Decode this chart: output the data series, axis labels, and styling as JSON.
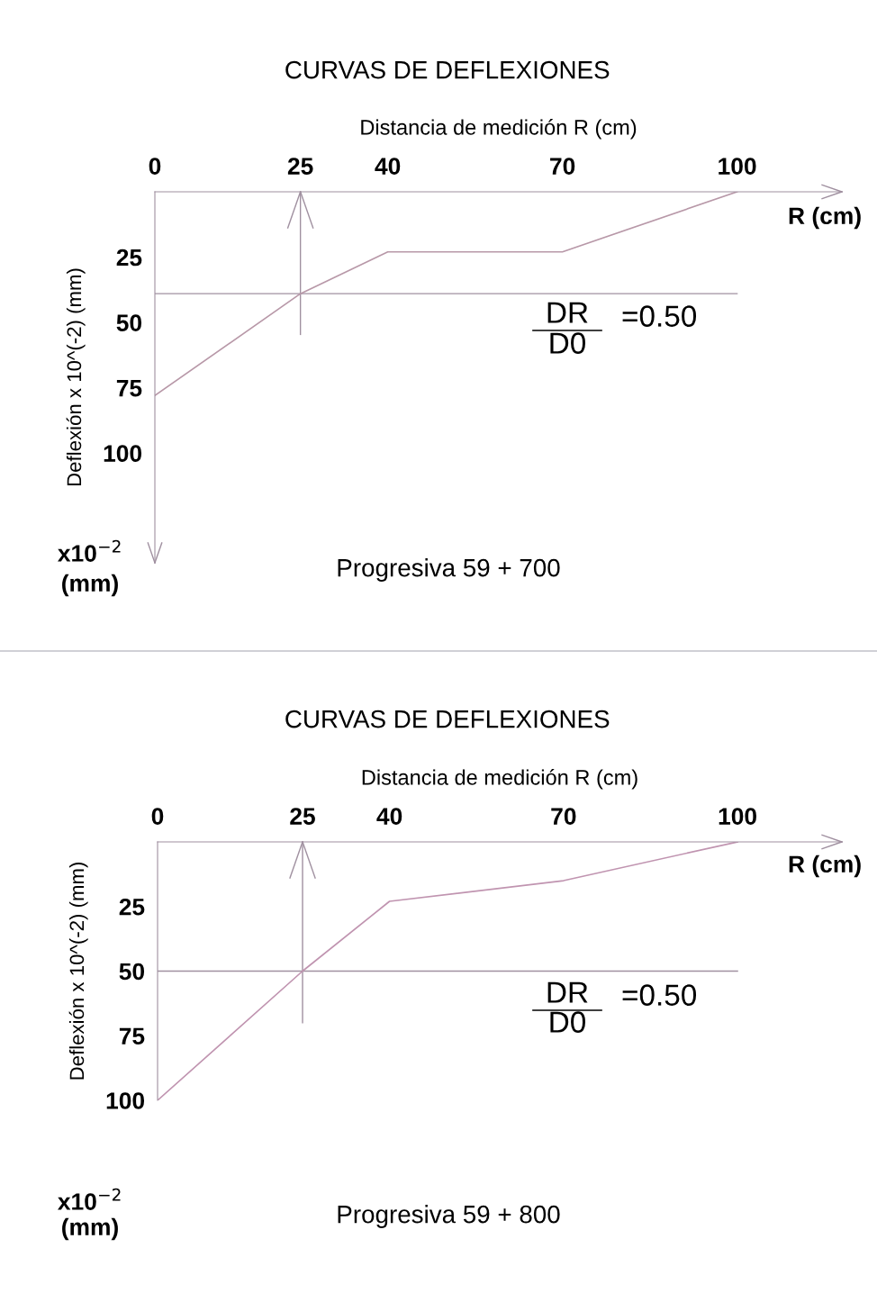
{
  "chart_data": [
    {
      "type": "line",
      "title": "CURVAS DE DEFLEXIONES",
      "xlabel": "Distancia de medición R (cm)",
      "ylabel": "Deflexión x 10^(-2) (mm)",
      "x": [
        0,
        25,
        40,
        70,
        100
      ],
      "series": [
        {
          "color": "#b898a8",
          "values": [
            78,
            39,
            23,
            23,
            0
          ]
        }
      ],
      "xlim": [
        0,
        118
      ],
      "xticks": [
        0,
        25,
        40,
        70,
        100
      ],
      "ylim": [
        142,
        0
      ],
      "yticks": [
        25,
        50,
        75,
        100
      ],
      "ref_lines": [
        {
          "axis": "y",
          "value": 39,
          "color": "#a090a0"
        },
        {
          "axis": "x",
          "value": 25,
          "color": "#a090a0"
        }
      ],
      "annotations": [
        "R (cm)",
        "DR",
        "D0",
        "=0.50",
        "x10$^{−2}$",
        "(mm)",
        "Progresiva 59 + 700"
      ],
      "grid": false,
      "legend": false
    },
    {
      "type": "line",
      "title": "CURVAS DE DEFLEXIONES",
      "xlabel": "Distancia de medición R (cm)",
      "ylabel": "Deflexión x 10^(-2) (mm)",
      "x": [
        0,
        25,
        40,
        70,
        100
      ],
      "series": [
        {
          "color": "#c094b0",
          "values": [
            100,
            50,
            23,
            15,
            0
          ]
        }
      ],
      "xlim": [
        0,
        118
      ],
      "xticks": [
        0,
        25,
        40,
        70,
        100
      ],
      "ylim": [
        100,
        0
      ],
      "yticks": [
        25,
        50,
        75,
        100
      ],
      "ref_lines": [
        {
          "axis": "y",
          "value": 50,
          "color": "#a090a0"
        },
        {
          "axis": "x",
          "value": 25,
          "color": "#a090a0"
        }
      ],
      "annotations": [
        "R (cm)",
        "DR",
        "D0",
        "=0.50",
        "x10$^{−2}$",
        "(mm)",
        "Progresiva 59 + 800"
      ],
      "grid": false,
      "legend": false
    }
  ]
}
